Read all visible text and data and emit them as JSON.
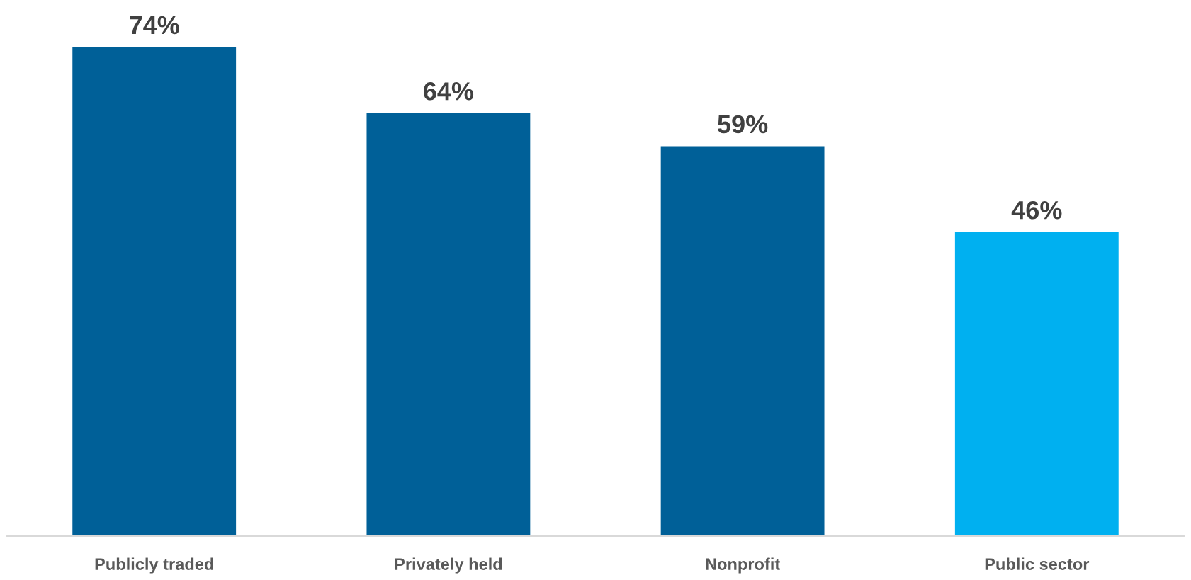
{
  "chart_data": {
    "type": "bar",
    "categories": [
      "Publicly traded",
      "Privately held",
      "Nonprofit",
      "Public sector"
    ],
    "values": [
      74,
      64,
      59,
      46
    ],
    "colors": [
      "#006098",
      "#006098",
      "#006098",
      "#00b0f0"
    ],
    "value_labels": [
      "74%",
      "64%",
      "59%",
      "46%"
    ],
    "grid": false,
    "legend": false
  }
}
